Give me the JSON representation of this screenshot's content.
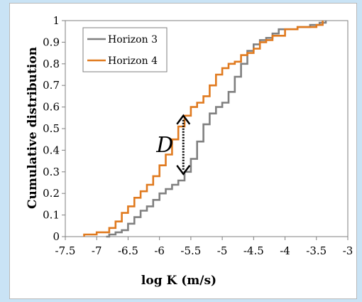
{
  "chart_data": {
    "type": "line",
    "title": "",
    "xlabel": "log K (m/s)",
    "ylabel": "Cumulative distribution",
    "xlim": [
      -7.5,
      -3
    ],
    "ylim": [
      0,
      1
    ],
    "x_ticks": [
      "-7.5",
      "-7",
      "-6.5",
      "-6",
      "-5.5",
      "-5",
      "-4.5",
      "-4",
      "-3.5",
      "-3"
    ],
    "y_ticks": [
      "0",
      "0.1",
      "0.2",
      "0.3",
      "0.4",
      "0.5",
      "0.6",
      "0.7",
      "0.8",
      "0.9",
      "1"
    ],
    "grid": false,
    "legend_position": "top-left",
    "series": [
      {
        "name": "Horizon 3",
        "color": "#808080",
        "points": [
          [
            -6.85,
            0
          ],
          [
            -6.8,
            0.01
          ],
          [
            -6.7,
            0.02
          ],
          [
            -6.6,
            0.03
          ],
          [
            -6.5,
            0.06
          ],
          [
            -6.4,
            0.09
          ],
          [
            -6.3,
            0.12
          ],
          [
            -6.2,
            0.14
          ],
          [
            -6.1,
            0.17
          ],
          [
            -6.0,
            0.2
          ],
          [
            -5.9,
            0.22
          ],
          [
            -5.8,
            0.24
          ],
          [
            -5.7,
            0.26
          ],
          [
            -5.6,
            0.3
          ],
          [
            -5.5,
            0.36
          ],
          [
            -5.4,
            0.44
          ],
          [
            -5.3,
            0.52
          ],
          [
            -5.2,
            0.57
          ],
          [
            -5.1,
            0.6
          ],
          [
            -5.0,
            0.62
          ],
          [
            -4.9,
            0.67
          ],
          [
            -4.8,
            0.74
          ],
          [
            -4.7,
            0.8
          ],
          [
            -4.6,
            0.86
          ],
          [
            -4.5,
            0.89
          ],
          [
            -4.4,
            0.91
          ],
          [
            -4.3,
            0.92
          ],
          [
            -4.2,
            0.94
          ],
          [
            -4.1,
            0.96
          ],
          [
            -4.0,
            0.96
          ],
          [
            -3.8,
            0.97
          ],
          [
            -3.6,
            0.98
          ],
          [
            -3.45,
            0.99
          ],
          [
            -3.35,
            1.0
          ]
        ]
      },
      {
        "name": "Horizon 4",
        "color": "#e07a1f",
        "points": [
          [
            -7.2,
            0
          ],
          [
            -7.2,
            0.01
          ],
          [
            -7.0,
            0.02
          ],
          [
            -6.8,
            0.04
          ],
          [
            -6.7,
            0.07
          ],
          [
            -6.6,
            0.11
          ],
          [
            -6.5,
            0.14
          ],
          [
            -6.4,
            0.18
          ],
          [
            -6.3,
            0.21
          ],
          [
            -6.2,
            0.24
          ],
          [
            -6.1,
            0.28
          ],
          [
            -6.0,
            0.33
          ],
          [
            -5.9,
            0.38
          ],
          [
            -5.8,
            0.45
          ],
          [
            -5.7,
            0.51
          ],
          [
            -5.6,
            0.56
          ],
          [
            -5.5,
            0.6
          ],
          [
            -5.4,
            0.62
          ],
          [
            -5.3,
            0.65
          ],
          [
            -5.2,
            0.7
          ],
          [
            -5.1,
            0.75
          ],
          [
            -5.0,
            0.78
          ],
          [
            -4.9,
            0.8
          ],
          [
            -4.8,
            0.81
          ],
          [
            -4.7,
            0.84
          ],
          [
            -4.6,
            0.85
          ],
          [
            -4.5,
            0.87
          ],
          [
            -4.4,
            0.9
          ],
          [
            -4.3,
            0.91
          ],
          [
            -4.2,
            0.93
          ],
          [
            -4.0,
            0.96
          ],
          [
            -3.8,
            0.97
          ],
          [
            -3.5,
            0.98
          ],
          [
            -3.4,
            1.0
          ]
        ]
      }
    ],
    "annotations": [
      {
        "text": "D",
        "x_from": -5.62,
        "y_from": 0.29,
        "y_to": 0.56
      }
    ]
  }
}
